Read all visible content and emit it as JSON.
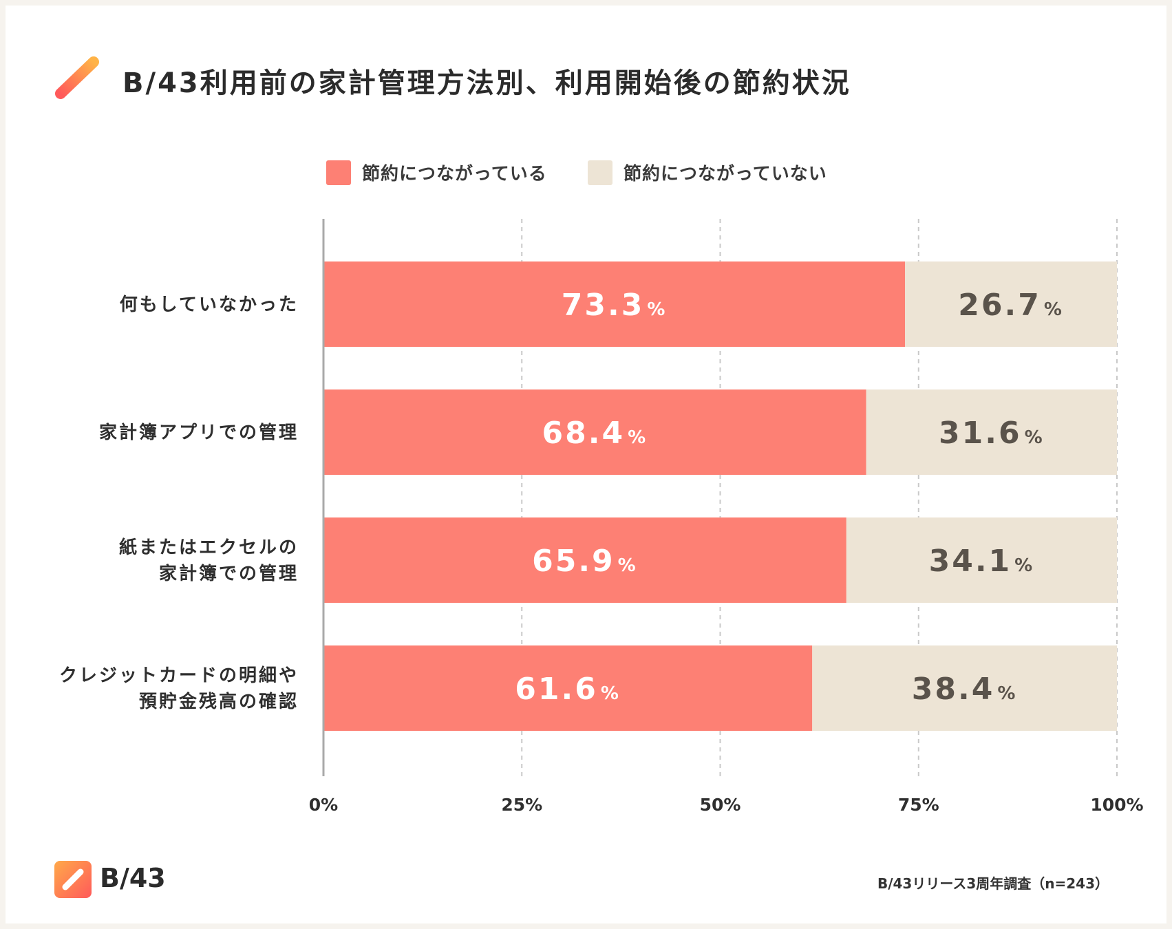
{
  "title": "B/43利用前の家計管理方法別、利用開始後の節約状況",
  "brand": "B/43",
  "source": "B/43リリース3周年調査（n=243）",
  "colors": {
    "saved": "#fd8074",
    "not_saved": "#ede4d5",
    "accent_start": "#ffa94a",
    "accent_end": "#ff5a5a"
  },
  "chart_data": {
    "type": "bar",
    "orientation": "horizontal",
    "stacked": true,
    "title": "B/43利用前の家計管理方法別、利用開始後の節約状況",
    "categories": [
      [
        "何もしていなかった"
      ],
      [
        "家計簿アプリでの管理"
      ],
      [
        "紙またはエクセルの",
        "家計簿での管理"
      ],
      [
        "クレジットカードの明細や",
        "預貯金残高の確認"
      ]
    ],
    "series": [
      {
        "name": "節約につながっている",
        "values": [
          73.3,
          68.4,
          65.9,
          61.6
        ],
        "color": "#fd8074"
      },
      {
        "name": "節約につながっていない",
        "values": [
          26.7,
          31.6,
          34.1,
          38.4
        ],
        "color": "#ede4d5"
      }
    ],
    "value_suffix": "%",
    "xlim": [
      0,
      100
    ],
    "xticks": [
      0,
      25,
      50,
      75,
      100
    ],
    "xtick_labels": [
      "0%",
      "25%",
      "50%",
      "75%",
      "100%"
    ],
    "grid": true,
    "legend_position": "top-center"
  }
}
